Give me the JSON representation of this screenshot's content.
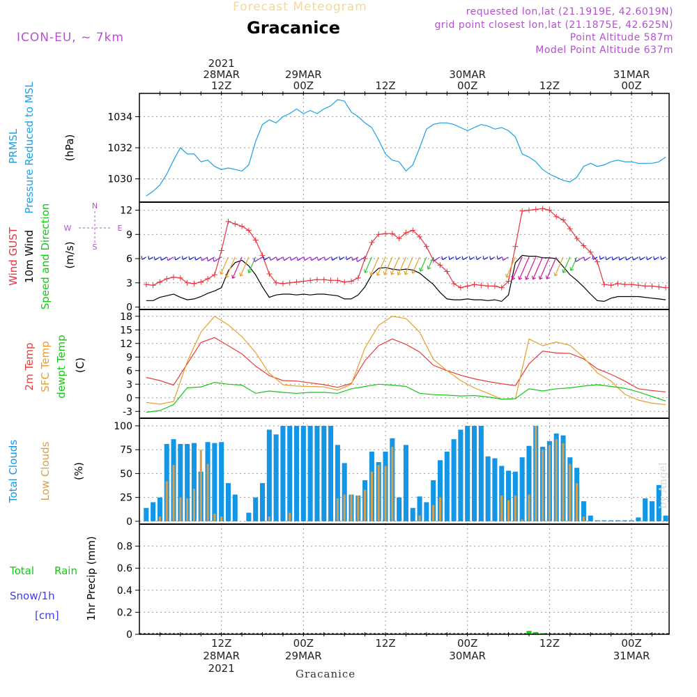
{
  "header": {
    "product": "Forecast Meteogram",
    "location": "Gracanice",
    "model": "ICON-EU, ~ 7km",
    "requested": "requested lon,lat (21.1919E, 42.6019N)",
    "gridpoint": "grid point closest lon,lat (21.1875E, 42.625N)",
    "point_altitude": "Point Altitude 587m",
    "model_altitude": "Model Point Altitude 637m",
    "credit": "by Angel",
    "bottom_label": "Gracanice"
  },
  "colors": {
    "pressure": "#1ba1e6",
    "gust": "#e8323c",
    "wind": "#000000",
    "temp": "#e83c3c",
    "sfc_temp": "#e6a028",
    "dewpt": "#14c814",
    "total_clouds": "#1496e6",
    "low_clouds": "#d2a050",
    "rain": "#14c814",
    "snow": "#3c3cf0",
    "purple": "#b450d2"
  },
  "time_axis": {
    "top_ticks": [
      {
        "t": 12,
        "lines": [
          "2021",
          "28MAR",
          "12Z"
        ]
      },
      {
        "t": 24,
        "lines": [
          "29MAR",
          "00Z"
        ]
      },
      {
        "t": 36,
        "lines": [
          "12Z"
        ]
      },
      {
        "t": 48,
        "lines": [
          "30MAR",
          "00Z"
        ]
      },
      {
        "t": 60,
        "lines": [
          "12Z"
        ]
      },
      {
        "t": 72,
        "lines": [
          "31MAR",
          "00Z"
        ]
      }
    ],
    "bottom_ticks": [
      {
        "t": 12,
        "lines": [
          "12Z",
          "28MAR",
          "2021"
        ]
      },
      {
        "t": 24,
        "lines": [
          "00Z",
          "29MAR"
        ]
      },
      {
        "t": 36,
        "lines": [
          "12Z"
        ]
      },
      {
        "t": 48,
        "lines": [
          "00Z",
          "30MAR"
        ]
      },
      {
        "t": 60,
        "lines": [
          "12Z"
        ]
      },
      {
        "t": 72,
        "lines": [
          "00Z",
          "31MAR"
        ]
      }
    ]
  },
  "chart_data": [
    {
      "type": "line",
      "labels": [
        "PRMSL",
        "Pressure Reduced to MSL",
        "(hPa)"
      ],
      "ylim": [
        1028.5,
        1035.5
      ],
      "yticks": [
        1030,
        1032,
        1034
      ],
      "series": [
        {
          "name": "PRMSL",
          "color": "#1ba1e6",
          "x": [
            1,
            2,
            3,
            4,
            5,
            6,
            7,
            8,
            9,
            10,
            11,
            12,
            13,
            14,
            15,
            16,
            17,
            18,
            19,
            20,
            21,
            22,
            23,
            24,
            25,
            26,
            27,
            28,
            29,
            30,
            31,
            32,
            33,
            34,
            35,
            36,
            37,
            38,
            39,
            40,
            41,
            42,
            43,
            44,
            45,
            46,
            47,
            48,
            49,
            50,
            51,
            52,
            53,
            54,
            55,
            56,
            57,
            58,
            59,
            60,
            61,
            62,
            63,
            64,
            65,
            66,
            67,
            68,
            69,
            70,
            71,
            72,
            73,
            74,
            75,
            76,
            77
          ],
          "y": [
            1028.9,
            1029.2,
            1029.6,
            1030.3,
            1031.2,
            1032.0,
            1031.6,
            1031.6,
            1031.1,
            1031.2,
            1030.8,
            1030.6,
            1030.7,
            1030.6,
            1030.5,
            1030.9,
            1032.4,
            1033.5,
            1033.8,
            1033.6,
            1034.0,
            1034.2,
            1034.5,
            1034.2,
            1034.4,
            1034.2,
            1034.5,
            1034.7,
            1035.1,
            1035.0,
            1034.3,
            1034.0,
            1033.6,
            1033.3,
            1032.5,
            1031.6,
            1031.2,
            1031.1,
            1030.5,
            1030.9,
            1032.0,
            1033.2,
            1033.5,
            1033.6,
            1033.6,
            1033.5,
            1033.3,
            1033.1,
            1033.3,
            1033.5,
            1033.4,
            1033.2,
            1033.3,
            1033.1,
            1032.7,
            1031.6,
            1031.4,
            1031.1,
            1030.6,
            1030.3,
            1030.1,
            1029.9,
            1029.8,
            1030.1,
            1030.8,
            1031.0,
            1030.8,
            1030.9,
            1031.1,
            1031.2,
            1031.1,
            1031.1,
            1031.0,
            1031.0,
            1031.0,
            1031.1,
            1031.4
          ]
        }
      ]
    },
    {
      "type": "line",
      "labels": [
        "Wind GUST",
        "10m Wind",
        "Speed and Direction",
        "(m/s)"
      ],
      "compass": {
        "n": "N",
        "s": "S",
        "w": "W",
        "e": "E"
      },
      "ylim": [
        -0.3,
        13
      ],
      "yticks": [
        0,
        3,
        6,
        9,
        12
      ],
      "series": [
        {
          "name": "Wind GUST",
          "color": "#e8323c",
          "x": [
            1,
            2,
            3,
            4,
            5,
            6,
            7,
            8,
            9,
            10,
            11,
            12,
            13,
            14,
            15,
            16,
            17,
            18,
            19,
            20,
            21,
            22,
            23,
            24,
            25,
            26,
            27,
            28,
            29,
            30,
            31,
            32,
            33,
            34,
            35,
            36,
            37,
            38,
            39,
            40,
            41,
            42,
            43,
            44,
            45,
            46,
            47,
            48,
            49,
            50,
            51,
            52,
            53,
            54,
            55,
            56,
            57,
            58,
            59,
            60,
            61,
            62,
            63,
            64,
            65,
            66,
            67,
            68,
            69,
            70,
            71,
            72,
            73,
            74,
            75,
            76,
            77
          ],
          "y": [
            2.8,
            2.7,
            3.1,
            3.5,
            3.7,
            3.6,
            3.0,
            2.9,
            3.1,
            3.5,
            4.0,
            7.0,
            10.6,
            10.3,
            10.0,
            9.5,
            8.3,
            6.4,
            4.1,
            3.0,
            2.9,
            3.0,
            3.1,
            3.2,
            3.3,
            3.4,
            3.4,
            3.3,
            3.3,
            3.1,
            3.2,
            3.6,
            6.0,
            8.0,
            9.0,
            9.1,
            9.1,
            8.5,
            9.2,
            9.5,
            8.7,
            7.5,
            5.8,
            5.2,
            4.4,
            2.9,
            2.4,
            2.6,
            2.8,
            2.7,
            2.6,
            2.6,
            2.4,
            3.2,
            7.5,
            11.9,
            12.0,
            12.1,
            12.2,
            12.0,
            11.2,
            10.8,
            9.7,
            8.5,
            7.6,
            6.8,
            5.6,
            2.8,
            2.7,
            2.9,
            2.8,
            2.8,
            2.7,
            2.6,
            2.6,
            2.5,
            2.4
          ]
        },
        {
          "name": "10m Wind",
          "color": "#000000",
          "x": [
            1,
            2,
            3,
            4,
            5,
            6,
            7,
            8,
            9,
            10,
            11,
            12,
            13,
            14,
            15,
            16,
            17,
            18,
            19,
            20,
            21,
            22,
            23,
            24,
            25,
            26,
            27,
            28,
            29,
            30,
            31,
            32,
            33,
            34,
            35,
            36,
            37,
            38,
            39,
            40,
            41,
            42,
            43,
            44,
            45,
            46,
            47,
            48,
            49,
            50,
            51,
            52,
            53,
            54,
            55,
            56,
            57,
            58,
            59,
            60,
            61,
            62,
            63,
            64,
            65,
            66,
            67,
            68,
            69,
            70,
            71,
            72,
            73,
            74,
            75,
            76,
            77
          ],
          "y": [
            0.8,
            0.8,
            1.2,
            1.4,
            1.6,
            1.2,
            0.9,
            1.0,
            1.3,
            1.7,
            2.0,
            2.4,
            4.5,
            5.5,
            5.8,
            5.1,
            4.0,
            2.5,
            1.2,
            1.5,
            1.6,
            1.6,
            1.5,
            1.6,
            1.5,
            1.6,
            1.6,
            1.5,
            1.4,
            1.0,
            1.0,
            1.5,
            2.5,
            4.0,
            4.8,
            4.9,
            4.7,
            4.6,
            4.7,
            4.6,
            4.2,
            3.5,
            2.8,
            1.8,
            1.0,
            0.9,
            0.9,
            1.0,
            0.9,
            0.9,
            0.8,
            0.9,
            0.7,
            1.5,
            5.5,
            6.4,
            6.3,
            6.3,
            6.1,
            6.1,
            6.0,
            5.0,
            4.0,
            3.3,
            2.5,
            1.6,
            0.8,
            0.7,
            1.1,
            1.3,
            1.3,
            1.3,
            1.3,
            1.2,
            1.1,
            1.0,
            0.9
          ]
        }
      ]
    },
    {
      "type": "line",
      "labels": [
        "2m Temp",
        "SFC Temp",
        "dewpt Temp",
        "(C)"
      ],
      "ylim": [
        -4.5,
        19.5
      ],
      "yticks": [
        -3,
        0,
        3,
        6,
        9,
        12,
        15,
        18
      ],
      "series": [
        {
          "name": "2m Temp",
          "color": "#e83c3c",
          "x": [
            1,
            3,
            5,
            7,
            9,
            11,
            13,
            15,
            17,
            19,
            21,
            23,
            25,
            27,
            29,
            31,
            33,
            35,
            37,
            39,
            41,
            43,
            45,
            47,
            49,
            51,
            53,
            55,
            57,
            59,
            61,
            63,
            65,
            67,
            69,
            71,
            73,
            75,
            77
          ],
          "y": [
            4.5,
            3.8,
            2.8,
            7.5,
            12.2,
            13.3,
            11.5,
            9.7,
            7.0,
            4.9,
            3.8,
            3.7,
            3.3,
            2.9,
            2.3,
            3.2,
            8.2,
            11.5,
            13.0,
            11.8,
            10.1,
            7.2,
            6.0,
            5.0,
            4.2,
            3.6,
            3.1,
            2.7,
            7.5,
            10.3,
            9.9,
            9.8,
            8.6,
            6.4,
            5.2,
            3.7,
            2.0,
            1.6,
            1.3
          ]
        },
        {
          "name": "SFC Temp",
          "color": "#e6a028",
          "x": [
            1,
            3,
            5,
            7,
            9,
            11,
            13,
            15,
            17,
            19,
            21,
            23,
            25,
            27,
            29,
            31,
            33,
            35,
            37,
            39,
            41,
            43,
            45,
            47,
            49,
            51,
            53,
            55,
            57,
            59,
            61,
            63,
            65,
            67,
            69,
            71,
            73,
            75,
            77
          ],
          "y": [
            -1.0,
            -1.4,
            -0.8,
            8.0,
            14.5,
            18.0,
            16.1,
            13.5,
            10.0,
            5.4,
            2.9,
            2.6,
            2.5,
            2.4,
            1.7,
            3.0,
            11.0,
            16.0,
            18.0,
            17.5,
            14.5,
            8.5,
            6.0,
            3.8,
            2.2,
            1.0,
            -0.3,
            -0.2,
            13.0,
            11.5,
            12.3,
            11.6,
            8.9,
            5.5,
            3.7,
            0.8,
            -0.5,
            -1.2,
            -1.5
          ]
        },
        {
          "name": "dewpt Temp",
          "color": "#14c814",
          "x": [
            1,
            3,
            5,
            7,
            9,
            11,
            13,
            15,
            17,
            19,
            21,
            23,
            25,
            27,
            29,
            31,
            33,
            35,
            37,
            39,
            41,
            43,
            45,
            47,
            49,
            51,
            53,
            55,
            57,
            59,
            61,
            63,
            65,
            67,
            69,
            71,
            73,
            75,
            77
          ],
          "y": [
            -3.2,
            -2.8,
            -1.5,
            2.2,
            2.4,
            3.4,
            3.0,
            2.8,
            1.0,
            1.5,
            1.2,
            1.0,
            1.2,
            1.2,
            1.0,
            2.0,
            2.5,
            3.0,
            2.8,
            2.5,
            1.0,
            0.7,
            0.6,
            0.4,
            0.5,
            0.2,
            -0.3,
            -0.2,
            2.0,
            1.5,
            2.0,
            2.2,
            2.6,
            2.9,
            2.5,
            2.1,
            1.3,
            0.3,
            -0.7
          ]
        }
      ]
    },
    {
      "type": "bar",
      "labels": [
        "Total Clouds",
        "Low Clouds",
        "(%)"
      ],
      "ylim": [
        -3,
        108
      ],
      "yticks": [
        0,
        25,
        50,
        75,
        100
      ],
      "x": [
        1,
        2,
        3,
        4,
        5,
        6,
        7,
        8,
        9,
        10,
        11,
        12,
        13,
        14,
        15,
        16,
        17,
        18,
        19,
        20,
        21,
        22,
        23,
        24,
        25,
        26,
        27,
        28,
        29,
        30,
        31,
        32,
        33,
        34,
        35,
        36,
        37,
        38,
        39,
        40,
        41,
        42,
        43,
        44,
        45,
        46,
        47,
        48,
        49,
        50,
        51,
        52,
        53,
        54,
        55,
        56,
        57,
        58,
        59,
        60,
        61,
        62,
        63,
        64,
        65,
        66,
        67,
        68,
        69,
        70,
        71,
        72,
        73,
        74,
        75,
        76,
        77
      ],
      "series": [
        {
          "name": "Total Clouds",
          "color": "#1496e6",
          "values": [
            14,
            20,
            25,
            81,
            86,
            81,
            81,
            82,
            52,
            83,
            82,
            83,
            40,
            28,
            0,
            9,
            25,
            40,
            96,
            91,
            100,
            100,
            100,
            100,
            100,
            100,
            100,
            100,
            80,
            61,
            28,
            27,
            43,
            73,
            62,
            73,
            87,
            25,
            80,
            14,
            26,
            20,
            43,
            64,
            73,
            86,
            96,
            100,
            100,
            100,
            68,
            66,
            58,
            53,
            52,
            67,
            79,
            100,
            78,
            84,
            92,
            90,
            67,
            56,
            21,
            6,
            1,
            1,
            1,
            1,
            1,
            1,
            4,
            24,
            21,
            38,
            6
          ]
        },
        {
          "name": "Low Clouds",
          "color": "#d2a050",
          "values": [
            0,
            0,
            5,
            42,
            59,
            25,
            24,
            34,
            75,
            60,
            8,
            5,
            0,
            0,
            0,
            0,
            0,
            0,
            5,
            0,
            0,
            9,
            0,
            0,
            0,
            0,
            0,
            0,
            24,
            28,
            28,
            27,
            33,
            52,
            59,
            58,
            78,
            0,
            0,
            0,
            6,
            0,
            17,
            25,
            0,
            0,
            0,
            0,
            0,
            0,
            0,
            0,
            27,
            22,
            27,
            2,
            28,
            100,
            75,
            80,
            86,
            82,
            60,
            40,
            5,
            0,
            0,
            0,
            0,
            0,
            0,
            0,
            0,
            0,
            0,
            0,
            0
          ]
        }
      ]
    },
    {
      "type": "bar",
      "labels": [
        "Total",
        "Rain",
        "Snow/1h",
        "[cm]",
        "1hr Precip (mm)"
      ],
      "ylim": [
        0,
        1.0
      ],
      "yticks": [
        0,
        0.2,
        0.4,
        0.6,
        0.8
      ],
      "x": [
        57,
        58,
        59
      ],
      "series": [
        {
          "name": "Total Rain",
          "color": "#14c814",
          "values": [
            0.03,
            0.02,
            0.01
          ]
        }
      ]
    }
  ]
}
